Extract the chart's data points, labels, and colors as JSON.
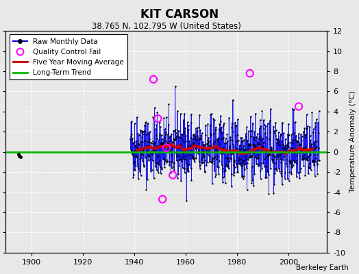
{
  "title": "KIT CARSON",
  "subtitle": "38.765 N, 102.795 W (United States)",
  "credit": "Berkeley Earth",
  "ylabel": "Temperature Anomaly (°C)",
  "xlim": [
    1890,
    2015
  ],
  "ylim": [
    -10,
    12
  ],
  "yticks": [
    -10,
    -8,
    -6,
    -4,
    -2,
    0,
    2,
    4,
    6,
    8,
    10,
    12
  ],
  "xticks": [
    1900,
    1920,
    1940,
    1960,
    1980,
    2000
  ],
  "seed": 42,
  "data_start_year": 1938.5,
  "data_end_year": 2012,
  "early_points": [
    {
      "year": 1895.0,
      "val": -0.2
    },
    {
      "year": 1895.3,
      "val": -0.4
    },
    {
      "year": 1895.7,
      "val": -0.5
    }
  ],
  "qc_fail_points": [
    {
      "year": 1947.5,
      "val": 7.2
    },
    {
      "year": 1949.2,
      "val": 3.3
    },
    {
      "year": 1951.0,
      "val": -4.7
    },
    {
      "year": 1952.5,
      "val": 0.4
    },
    {
      "year": 1955.0,
      "val": -2.3
    },
    {
      "year": 1985.0,
      "val": 7.8
    },
    {
      "year": 2004.0,
      "val": 4.5
    }
  ],
  "colors": {
    "raw_line": "#0000ee",
    "raw_dot": "#000000",
    "qc_fail": "#ff00ff",
    "moving_avg": "#cc0000",
    "long_trend": "#00bb00",
    "background": "#e8e8e8",
    "grid": "#ffffff"
  }
}
